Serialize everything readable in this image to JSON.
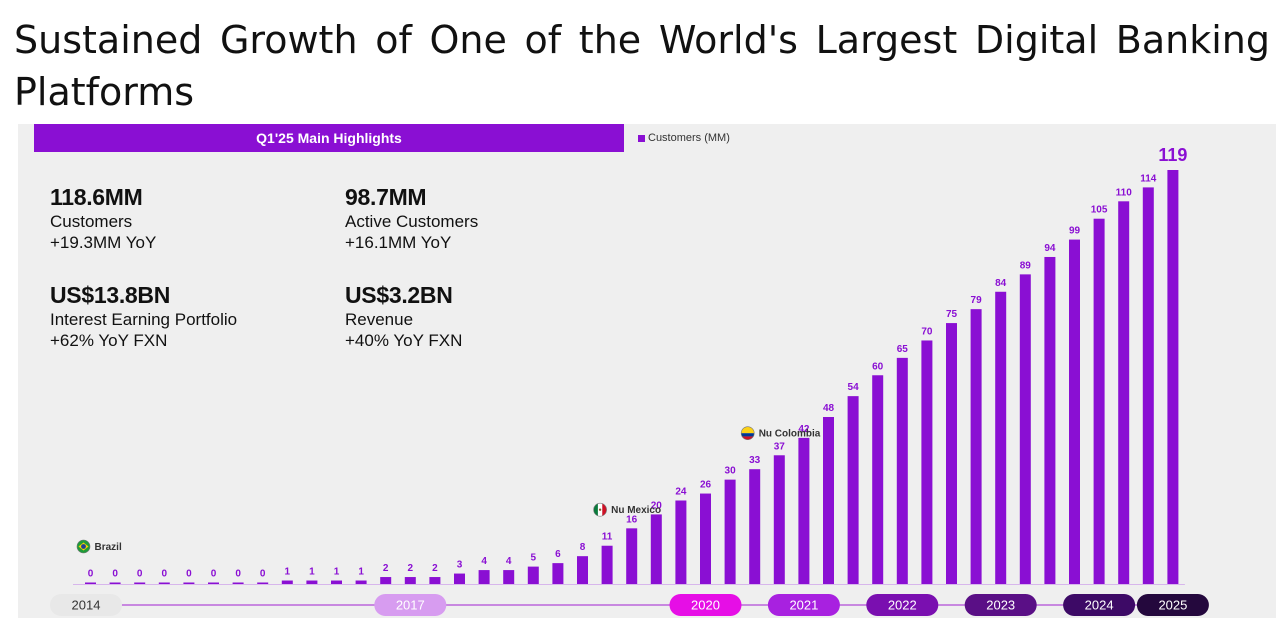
{
  "headline": "Sustained Growth of One of the World's Largest Digital Banking Platforms",
  "highlights": {
    "banner": "Q1'25 Main Highlights",
    "kpis": [
      {
        "value": "118.6MM",
        "label": "Customers",
        "sub": "+19.3MM YoY"
      },
      {
        "value": "98.7MM",
        "label": "Active Customers",
        "sub": "+16.1MM YoY"
      },
      {
        "value": "US$13.8BN",
        "label": "Interest Earning Portfolio",
        "sub": "+62% YoY FXN"
      },
      {
        "value": "US$3.2BN",
        "label": "Revenue",
        "sub": "+40% YoY FXN"
      }
    ]
  },
  "colors": {
    "accent": "#8a0fd3",
    "year_pills": [
      "#e8e8e8",
      "#d79cf0",
      "#e60ee6",
      "#a821e0",
      "#7a0fb0",
      "#5a0f86",
      "#3d0a66",
      "#24083d"
    ]
  },
  "chart_data": {
    "type": "bar",
    "series": [
      {
        "name": "Customers (MM)",
        "values": [
          0,
          0,
          0,
          0,
          0,
          0,
          0,
          0,
          1,
          1,
          1,
          1,
          2,
          2,
          2,
          3,
          4,
          4,
          5,
          6,
          8,
          11,
          16,
          20,
          24,
          26,
          30,
          33,
          37,
          42,
          48,
          54,
          60,
          65,
          70,
          75,
          79,
          84,
          89,
          94,
          99,
          105,
          110,
          114,
          119
        ]
      }
    ],
    "markers": [
      {
        "index": 0,
        "label": "Brazil",
        "flag": "brazil-flag"
      },
      {
        "index": 21,
        "label": "Nu Mexico",
        "flag": "mexico-flag"
      },
      {
        "index": 27,
        "label": "Nu Colombia",
        "flag": "colombia-flag"
      }
    ],
    "years": [
      {
        "label": "2014",
        "index": 0
      },
      {
        "label": "2017",
        "index": 13
      },
      {
        "label": "2020",
        "index": 25
      },
      {
        "label": "2021",
        "index": 29
      },
      {
        "label": "2022",
        "index": 33
      },
      {
        "label": "2023",
        "index": 37
      },
      {
        "label": "2024",
        "index": 41
      },
      {
        "label": "2025",
        "index": 44
      }
    ],
    "ylim": [
      0,
      119
    ]
  }
}
